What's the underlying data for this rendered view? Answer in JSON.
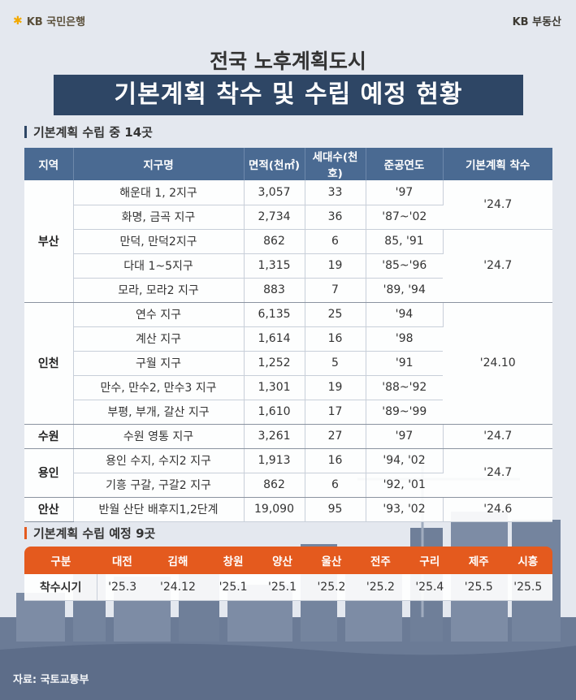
{
  "header": {
    "left_logo": "KB 국민은행",
    "right_logo": "KB 부동산"
  },
  "subtitle": "전국 노후계획도시",
  "title": "기본계획 착수 및 수립 예정 현황",
  "section1": {
    "heading": "기본계획 수립 중 14곳",
    "columns": [
      "지역",
      "지구명",
      "면적(천㎡)",
      "세대수(천호)",
      "준공연도",
      "기본계획 착수"
    ],
    "groups": [
      {
        "region": "부산",
        "rows": [
          {
            "name": "해운대 1, 2지구",
            "area": "3,057",
            "households": "33",
            "year": "'97"
          },
          {
            "name": "화명, 금곡 지구",
            "area": "2,734",
            "households": "36",
            "year": "'87~'02"
          },
          {
            "name": "만덕, 만덕2지구",
            "area": "862",
            "households": "6",
            "year": "85, '91"
          },
          {
            "name": "다대 1~5지구",
            "area": "1,315",
            "households": "19",
            "year": "'85~'96"
          },
          {
            "name": "모라, 모라2 지구",
            "area": "883",
            "households": "7",
            "year": "'89, '94"
          }
        ],
        "starts": [
          "'24.7",
          "'24.7"
        ]
      },
      {
        "region": "인천",
        "rows": [
          {
            "name": "연수 지구",
            "area": "6,135",
            "households": "25",
            "year": "'94"
          },
          {
            "name": "계산 지구",
            "area": "1,614",
            "households": "16",
            "year": "'98"
          },
          {
            "name": "구월 지구",
            "area": "1,252",
            "households": "5",
            "year": "'91"
          },
          {
            "name": "만수, 만수2, 만수3 지구",
            "area": "1,301",
            "households": "19",
            "year": "'88~'92"
          },
          {
            "name": "부평, 부개, 갈산 지구",
            "area": "1,610",
            "households": "17",
            "year": "'89~'99"
          }
        ],
        "starts": [
          "'24.10"
        ]
      },
      {
        "region": "수원",
        "rows": [
          {
            "name": "수원 영통 지구",
            "area": "3,261",
            "households": "27",
            "year": "'97"
          }
        ],
        "starts": [
          "'24.7"
        ]
      },
      {
        "region": "용인",
        "rows": [
          {
            "name": "용인 수지, 수지2 지구",
            "area": "1,913",
            "households": "16",
            "year": "'94, '02"
          },
          {
            "name": "기흥 구갈, 구갈2 지구",
            "area": "862",
            "households": "6",
            "year": "'92, '01"
          }
        ],
        "starts": [
          "'24.7"
        ]
      },
      {
        "region": "안산",
        "rows": [
          {
            "name": "반월 산단 배후지1,2단계",
            "area": "19,090",
            "households": "95",
            "year": "'93, '02"
          }
        ],
        "starts": [
          "'24.6"
        ]
      }
    ]
  },
  "section2": {
    "heading": "기본계획 수립 예정 9곳",
    "row_header": "구분",
    "cities": [
      "대전",
      "김해",
      "창원",
      "양산",
      "울산",
      "전주",
      "구리",
      "제주",
      "시흥"
    ],
    "start_label": "착수시기",
    "starts": [
      "'25.3",
      "'24.12",
      "'25.1",
      "'25.1",
      "'25.2",
      "'25.2",
      "'25.4",
      "'25.5",
      "'25.5"
    ]
  },
  "source": "자료: 국토교통부",
  "colors": {
    "title_bg": "#2e4665",
    "table1_header": "#4a6a92",
    "table2_header": "#e45a1e",
    "kb_yellow": "#f2a900"
  }
}
